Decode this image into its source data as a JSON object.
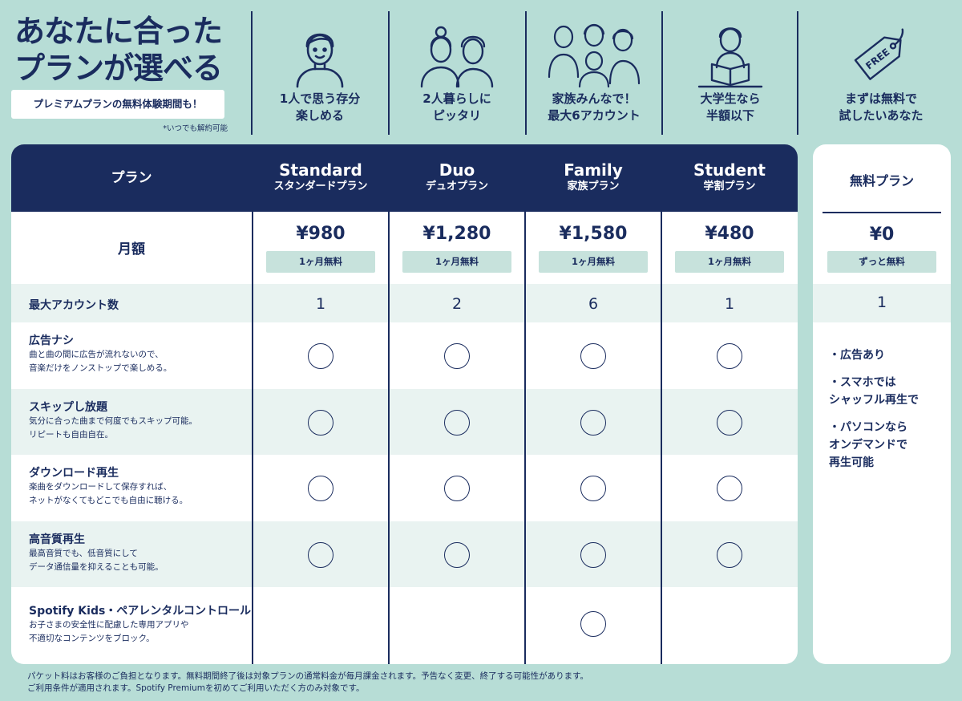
{
  "header": {
    "headline_line1": "あなたに合った",
    "headline_line2": "プランが選べる",
    "trial_badge": "プレミアムプランの無料体験期間も！",
    "cancel_note": "*いつでも解約可能"
  },
  "personas": [
    {
      "icon": "single-person-icon",
      "line1": "1人で思う存分",
      "line2": "楽しめる"
    },
    {
      "icon": "couple-icon",
      "line1": "2人暮らしに",
      "line2": "ピッタリ"
    },
    {
      "icon": "family-icon",
      "line1": "家族みんなで！",
      "line2": "最大6アカウント"
    },
    {
      "icon": "student-icon",
      "line1": "大学生なら",
      "line2": "半額以下"
    },
    {
      "icon": "free-tag-icon",
      "line1": "まずは無料で",
      "line2": "試したいあなた"
    }
  ],
  "table": {
    "plan_label": "プラン",
    "monthly_label": "月額",
    "plans": [
      {
        "name_en": "Standard",
        "name_ja": "スタンダードプラン",
        "price": "¥980",
        "trial": "1ヶ月無料",
        "accounts": "1"
      },
      {
        "name_en": "Duo",
        "name_ja": "デュオプラン",
        "price": "¥1,280",
        "trial": "1ヶ月無料",
        "accounts": "2"
      },
      {
        "name_en": "Family",
        "name_ja": "家族プラン",
        "price": "¥1,580",
        "trial": "1ヶ月無料",
        "accounts": "6"
      },
      {
        "name_en": "Student",
        "name_ja": "学割プラン",
        "price": "¥480",
        "trial": "1ヶ月無料",
        "accounts": "1"
      }
    ],
    "max_accounts_label": "最大アカウント数",
    "features": [
      {
        "title": "広告ナシ",
        "desc": "曲と曲の間に広告が流れないので、\n音楽だけをノンストップで楽しめる。",
        "included": [
          true,
          true,
          true,
          true
        ]
      },
      {
        "title": "スキップし放題",
        "desc": "気分に合った曲まで何度でもスキップ可能。\nリピートも自由自在。",
        "included": [
          true,
          true,
          true,
          true
        ]
      },
      {
        "title": "ダウンロード再生",
        "desc": "楽曲をダウンロードして保存すれば、\nネットがなくてもどこでも自由に聴ける。",
        "included": [
          true,
          true,
          true,
          true
        ]
      },
      {
        "title": "高音質再生",
        "desc": "最高音質でも、低音質にして\nデータ通信量を抑えることも可能。",
        "included": [
          true,
          true,
          true,
          true
        ]
      },
      {
        "title": "Spotify Kids・ペアレンタルコントロール",
        "desc": "お子さまの安全性に配慮した専用アプリや\n不適切なコンテンツをブロック。",
        "included": [
          false,
          false,
          true,
          false
        ]
      }
    ]
  },
  "free_plan": {
    "title": "無料プラン",
    "price": "¥0",
    "note": "ずっと無料",
    "accounts": "1",
    "bullets": [
      "・広告あり",
      "・スマホでは\n シャッフル再生で",
      "・パソコンなら\n オンデマンドで\n 再生可能"
    ]
  },
  "footnote": {
    "line1": "パケット料はお客様のご負担となります。無料期間終了後は対象プランの通常料金が毎月課金されます。予告なく変更、終了する可能性があります。",
    "line2": "ご利用条件が適用されます。Spotify Premiumを初めてご利用いただく方のみ対象です。"
  },
  "colors": {
    "navy": "#1a2c5e",
    "mint_bg": "#b7ddd6",
    "row_band": "#e9f3f1",
    "tag_bg": "#c7e2dc"
  }
}
